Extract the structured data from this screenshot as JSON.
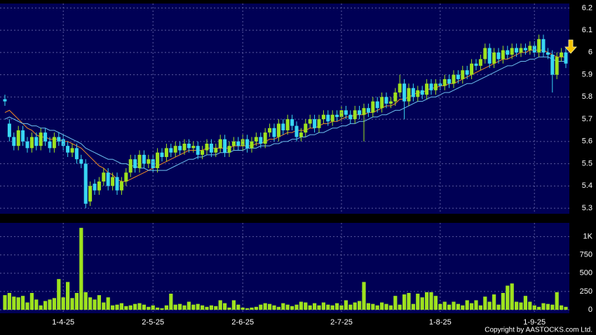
{
  "chart_data": [
    {
      "type": "candlestick",
      "up_color": "#9ee21e",
      "down_color": "#38d6f2",
      "open": [
        5.79,
        5.68,
        5.62,
        5.58,
        5.65,
        5.6,
        5.57,
        5.62,
        5.58,
        5.64,
        5.6,
        5.57,
        5.62,
        5.61,
        5.58,
        5.55,
        5.57,
        5.52,
        5.5,
        5.33,
        5.41,
        5.38,
        5.42,
        5.46,
        5.4,
        5.44,
        5.38,
        5.42,
        5.46,
        5.52,
        5.48,
        5.54,
        5.5,
        5.52,
        5.48,
        5.55,
        5.53,
        5.57,
        5.55,
        5.58,
        5.56,
        5.59,
        5.57,
        5.58,
        5.54,
        5.56,
        5.59,
        5.55,
        5.57,
        5.61,
        5.55,
        5.58,
        5.6,
        5.58,
        5.61,
        5.57,
        5.6,
        5.62,
        5.59,
        5.64,
        5.66,
        5.62,
        5.68,
        5.65,
        5.7,
        5.67,
        5.62,
        5.64,
        5.68,
        5.7,
        5.66,
        5.7,
        5.72,
        5.69,
        5.72,
        5.71,
        5.74,
        5.72,
        5.7,
        5.74,
        5.72,
        5.75,
        5.73,
        5.78,
        5.75,
        5.8,
        5.77,
        5.78,
        5.82,
        5.86,
        5.78,
        5.84,
        5.8,
        5.83,
        5.81,
        5.86,
        5.83,
        5.86,
        5.85,
        5.88,
        5.86,
        5.9,
        5.88,
        5.92,
        5.9,
        5.95,
        5.94,
        5.97,
        6.02,
        5.95,
        6.0,
        5.97,
        6.01,
        5.99,
        6.02,
        6.0,
        6.02,
        6.01,
        6.03,
        6.0,
        6.06,
        6.0,
        5.99,
        5.9,
        5.98,
        6.0
      ],
      "high": [
        5.81,
        5.7,
        5.64,
        5.67,
        5.67,
        5.62,
        5.64,
        5.64,
        5.66,
        5.66,
        5.62,
        5.64,
        5.64,
        5.63,
        5.6,
        5.59,
        5.59,
        5.54,
        5.52,
        5.42,
        5.43,
        5.44,
        5.48,
        5.48,
        5.46,
        5.46,
        5.44,
        5.48,
        5.54,
        5.54,
        5.56,
        5.56,
        5.54,
        5.54,
        5.57,
        5.57,
        5.59,
        5.59,
        5.6,
        5.6,
        5.61,
        5.61,
        5.6,
        5.6,
        5.58,
        5.61,
        5.61,
        5.59,
        5.63,
        5.63,
        5.6,
        5.62,
        5.62,
        5.63,
        5.63,
        5.62,
        5.64,
        5.64,
        5.66,
        5.68,
        5.68,
        5.7,
        5.7,
        5.72,
        5.72,
        5.69,
        5.66,
        5.7,
        5.72,
        5.72,
        5.72,
        5.74,
        5.74,
        5.74,
        5.74,
        5.76,
        5.76,
        5.74,
        5.76,
        5.76,
        5.77,
        5.77,
        5.8,
        5.8,
        5.82,
        5.82,
        5.8,
        5.84,
        5.9,
        5.88,
        5.86,
        5.86,
        5.85,
        5.85,
        5.88,
        5.88,
        5.88,
        5.88,
        5.9,
        5.9,
        5.92,
        5.92,
        5.94,
        5.94,
        5.97,
        5.97,
        5.99,
        6.04,
        6.04,
        6.02,
        6.02,
        6.03,
        6.03,
        6.04,
        6.04,
        6.04,
        6.04,
        6.05,
        6.05,
        6.08,
        6.08,
        6.02,
        6.01,
        6.0,
        6.02,
        6.02
      ],
      "low": [
        5.76,
        5.6,
        5.56,
        5.56,
        5.58,
        5.55,
        5.55,
        5.56,
        5.56,
        5.58,
        5.55,
        5.55,
        5.58,
        5.56,
        5.53,
        5.53,
        5.5,
        5.48,
        5.3,
        5.31,
        5.36,
        5.36,
        5.4,
        5.38,
        5.38,
        5.36,
        5.36,
        5.4,
        5.44,
        5.46,
        5.46,
        5.48,
        5.48,
        5.46,
        5.46,
        5.51,
        5.51,
        5.53,
        5.53,
        5.54,
        5.54,
        5.55,
        5.55,
        5.52,
        5.52,
        5.54,
        5.53,
        5.53,
        5.55,
        5.53,
        5.53,
        5.56,
        5.56,
        5.56,
        5.55,
        5.55,
        5.58,
        5.57,
        5.57,
        5.62,
        5.6,
        5.6,
        5.63,
        5.63,
        5.65,
        5.6,
        5.6,
        5.62,
        5.66,
        5.64,
        5.64,
        5.68,
        5.67,
        5.67,
        5.69,
        5.69,
        5.7,
        5.68,
        5.68,
        5.7,
        5.6,
        5.71,
        5.71,
        5.73,
        5.73,
        5.75,
        5.75,
        5.76,
        5.8,
        5.7,
        5.76,
        5.78,
        5.78,
        5.79,
        5.79,
        5.81,
        5.81,
        5.83,
        5.83,
        5.84,
        5.84,
        5.86,
        5.86,
        5.88,
        5.88,
        5.92,
        5.92,
        5.95,
        5.93,
        5.93,
        5.95,
        5.95,
        5.97,
        5.97,
        5.98,
        5.98,
        5.99,
        5.99,
        5.98,
        5.98,
        5.98,
        5.97,
        5.82,
        5.88,
        5.96,
        5.93
      ],
      "close": [
        5.78,
        5.62,
        5.58,
        5.65,
        5.6,
        5.57,
        5.62,
        5.58,
        5.64,
        5.6,
        5.57,
        5.62,
        5.6,
        5.58,
        5.55,
        5.57,
        5.52,
        5.5,
        5.32,
        5.4,
        5.38,
        5.42,
        5.46,
        5.4,
        5.44,
        5.38,
        5.42,
        5.46,
        5.52,
        5.48,
        5.54,
        5.5,
        5.52,
        5.48,
        5.55,
        5.53,
        5.57,
        5.55,
        5.58,
        5.56,
        5.59,
        5.57,
        5.58,
        5.54,
        5.56,
        5.59,
        5.55,
        5.57,
        5.61,
        5.55,
        5.58,
        5.6,
        5.58,
        5.61,
        5.57,
        5.6,
        5.62,
        5.59,
        5.64,
        5.66,
        5.62,
        5.68,
        5.65,
        5.7,
        5.67,
        5.62,
        5.64,
        5.68,
        5.7,
        5.66,
        5.7,
        5.72,
        5.69,
        5.72,
        5.71,
        5.74,
        5.72,
        5.7,
        5.74,
        5.72,
        5.75,
        5.73,
        5.78,
        5.75,
        5.8,
        5.77,
        5.78,
        5.82,
        5.86,
        5.78,
        5.84,
        5.8,
        5.83,
        5.81,
        5.86,
        5.83,
        5.86,
        5.85,
        5.88,
        5.86,
        5.9,
        5.88,
        5.92,
        5.9,
        5.95,
        5.94,
        5.97,
        6.02,
        5.95,
        6.0,
        5.97,
        6.01,
        5.99,
        6.02,
        6.0,
        6.02,
        6.01,
        6.03,
        6.0,
        6.06,
        6.0,
        5.99,
        5.9,
        5.98,
        6.0,
        5.95
      ],
      "series": [
        {
          "color": "#f08a24",
          "values": [
            5.73,
            5.74,
            5.72,
            5.7,
            5.68,
            5.66,
            5.65,
            5.63,
            5.62,
            5.62,
            5.61,
            5.61,
            5.61,
            5.6,
            5.6,
            5.59,
            5.58,
            5.57,
            5.55,
            5.53,
            5.51,
            5.49,
            5.48,
            5.46,
            5.45,
            5.43,
            5.42,
            5.42,
            5.43,
            5.44,
            5.45,
            5.46,
            5.47,
            5.48,
            5.49,
            5.5,
            5.51,
            5.52,
            5.53,
            5.54,
            5.55,
            5.56,
            5.56,
            5.56,
            5.56,
            5.57,
            5.57,
            5.57,
            5.57,
            5.57,
            5.57,
            5.58,
            5.58,
            5.58,
            5.58,
            5.58,
            5.59,
            5.59,
            5.6,
            5.61,
            5.61,
            5.62,
            5.63,
            5.64,
            5.64,
            5.65,
            5.65,
            5.65,
            5.66,
            5.66,
            5.67,
            5.68,
            5.68,
            5.69,
            5.69,
            5.7,
            5.71,
            5.71,
            5.72,
            5.72,
            5.72,
            5.73,
            5.73,
            5.74,
            5.75,
            5.76,
            5.76,
            5.77,
            5.79,
            5.79,
            5.8,
            5.81,
            5.82,
            5.82,
            5.83,
            5.84,
            5.84,
            5.85,
            5.85,
            5.86,
            5.86,
            5.87,
            5.88,
            5.89,
            5.9,
            5.91,
            5.92,
            5.93,
            5.94,
            5.95,
            5.96,
            5.97,
            5.97,
            5.98,
            5.99,
            6.0,
            6.0,
            6.01,
            6.01,
            6.01,
            6.01,
            6.0,
            5.99,
            5.98,
            5.98,
            5.98
          ]
        },
        {
          "color": "#6fc3f0",
          "values": [
            5.7,
            5.71,
            5.7,
            5.69,
            5.68,
            5.68,
            5.67,
            5.67,
            5.66,
            5.66,
            5.65,
            5.65,
            5.64,
            5.63,
            5.62,
            5.61,
            5.6,
            5.59,
            5.57,
            5.56,
            5.55,
            5.54,
            5.53,
            5.52,
            5.52,
            5.51,
            5.5,
            5.5,
            5.49,
            5.49,
            5.48,
            5.48,
            5.47,
            5.47,
            5.47,
            5.47,
            5.47,
            5.48,
            5.49,
            5.5,
            5.51,
            5.52,
            5.52,
            5.53,
            5.53,
            5.54,
            5.54,
            5.54,
            5.55,
            5.55,
            5.55,
            5.56,
            5.56,
            5.56,
            5.57,
            5.57,
            5.57,
            5.58,
            5.58,
            5.58,
            5.59,
            5.59,
            5.6,
            5.6,
            5.61,
            5.61,
            5.62,
            5.62,
            5.63,
            5.63,
            5.64,
            5.64,
            5.65,
            5.66,
            5.66,
            5.67,
            5.67,
            5.68,
            5.68,
            5.69,
            5.69,
            5.7,
            5.71,
            5.71,
            5.72,
            5.72,
            5.73,
            5.74,
            5.74,
            5.75,
            5.76,
            5.77,
            5.78,
            5.78,
            5.79,
            5.8,
            5.8,
            5.81,
            5.82,
            5.82,
            5.83,
            5.84,
            5.85,
            5.86,
            5.86,
            5.87,
            5.88,
            5.89,
            5.9,
            5.91,
            5.92,
            5.93,
            5.94,
            5.94,
            5.95,
            5.96,
            5.96,
            5.97,
            5.97,
            5.98,
            5.98,
            5.98,
            5.97,
            5.96,
            5.96,
            5.96
          ]
        }
      ],
      "ylim": [
        5.275,
        6.22
      ],
      "yticks": [
        5.3,
        5.4,
        5.5,
        5.6,
        5.7,
        5.8,
        5.9,
        6,
        6.1,
        6.2
      ],
      "grid": true
    },
    {
      "type": "bar",
      "color": "#9ee21e",
      "categories": [
        null,
        null,
        null,
        null,
        null,
        null,
        null,
        null,
        null,
        null,
        null,
        null,
        null,
        "1-4-25",
        null,
        null,
        null,
        null,
        null,
        null,
        null,
        null,
        null,
        null,
        null,
        null,
        null,
        null,
        null,
        null,
        null,
        null,
        null,
        "2-5-25",
        null,
        null,
        null,
        null,
        null,
        null,
        null,
        null,
        null,
        null,
        null,
        null,
        null,
        null,
        null,
        null,
        null,
        null,
        null,
        "2-6-25",
        null,
        null,
        null,
        null,
        null,
        null,
        null,
        null,
        null,
        null,
        null,
        null,
        null,
        null,
        null,
        null,
        null,
        null,
        null,
        null,
        null,
        "2-7-25",
        null,
        null,
        null,
        null,
        null,
        null,
        null,
        null,
        null,
        null,
        null,
        null,
        null,
        null,
        null,
        null,
        null,
        null,
        null,
        null,
        null,
        "1-8-25",
        null,
        null,
        null,
        null,
        null,
        null,
        null,
        null,
        null,
        null,
        null,
        null,
        null,
        null,
        null,
        null,
        null,
        null,
        null,
        null,
        "1-9-25",
        null,
        null,
        null,
        null,
        null,
        null,
        null
      ],
      "values": [
        200,
        230,
        180,
        170,
        190,
        100,
        230,
        140,
        60,
        120,
        140,
        160,
        420,
        170,
        380,
        160,
        230,
        1120,
        240,
        170,
        140,
        200,
        100,
        170,
        60,
        70,
        90,
        50,
        60,
        80,
        90,
        70,
        40,
        60,
        30,
        20,
        60,
        220,
        70,
        80,
        60,
        110,
        70,
        80,
        60,
        40,
        60,
        50,
        130,
        90,
        30,
        130,
        70,
        30,
        20,
        30,
        40,
        70,
        90,
        80,
        60,
        40,
        90,
        70,
        50,
        70,
        110,
        100,
        60,
        90,
        60,
        100,
        70,
        60,
        90,
        60,
        130,
        70,
        100,
        120,
        380,
        90,
        80,
        60,
        100,
        80,
        60,
        190,
        70,
        210,
        230,
        80,
        220,
        170,
        240,
        240,
        190,
        80,
        110,
        70,
        110,
        80,
        60,
        130,
        90,
        130,
        60,
        180,
        110,
        210,
        70,
        230,
        330,
        360,
        110,
        100,
        190,
        110,
        60,
        40,
        90,
        80,
        70,
        240,
        60,
        40
      ],
      "ylim": [
        0,
        1150
      ],
      "yticks": [
        0,
        250,
        500,
        750,
        {
          "value": 1000,
          "label": "1K"
        }
      ],
      "grid": true
    }
  ],
  "copyright": "Copyright by AASTOCKS.com Ltd."
}
